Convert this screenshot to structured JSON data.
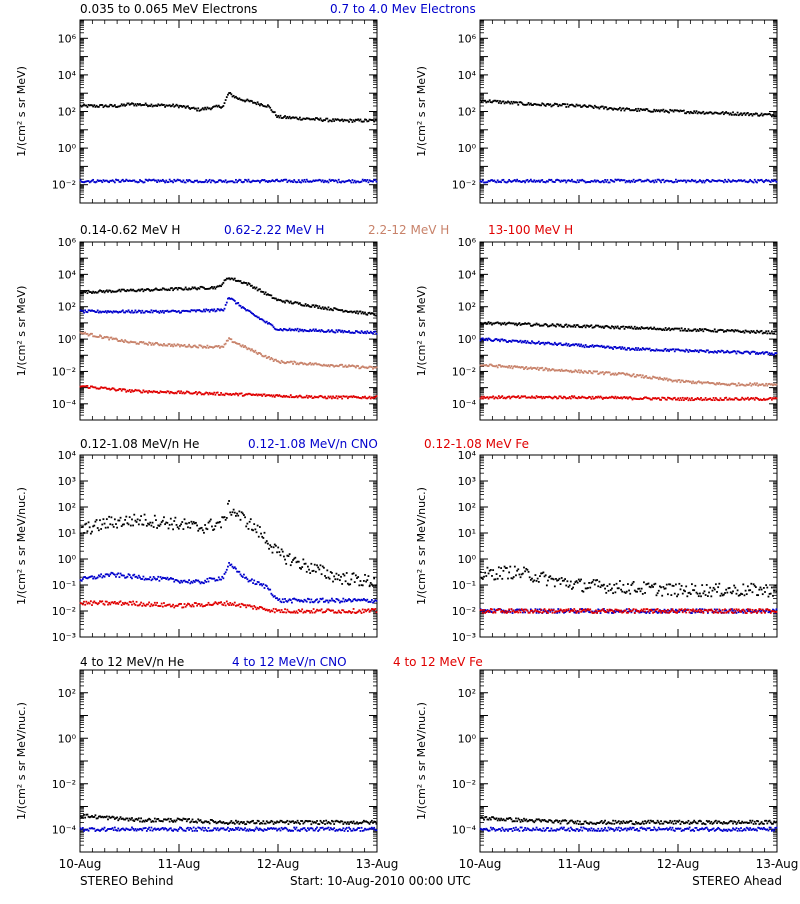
{
  "chart_data": {
    "type": "scatter",
    "x_range_days": [
      0,
      3
    ],
    "x_ticks": [
      "10-Aug",
      "11-Aug",
      "12-Aug",
      "13-Aug"
    ],
    "footer": {
      "left": "STEREO Behind",
      "center": "Start: 10-Aug-2010 00:00 UTC",
      "right": "STEREO Ahead"
    },
    "rows": [
      {
        "headers": [
          {
            "text": "0.035 to 0.065 MeV Electrons",
            "color": "#000000"
          },
          {
            "text": "0.7 to 4.0 Mev Electrons",
            "color": "#0000cc"
          }
        ],
        "ylabel": "1/(cm² s sr MeV)",
        "ylog_range": [
          -3,
          7
        ],
        "y_ticks": [
          -2,
          0,
          2,
          4,
          6
        ],
        "panels": [
          {
            "name": "STEREO Behind",
            "series": [
              {
                "color": "#000000",
                "points": [
                  [
                    0,
                    2.3
                  ],
                  [
                    0.4,
                    2.3
                  ],
                  [
                    0.5,
                    2.4
                  ],
                  [
                    1.0,
                    2.3
                  ],
                  [
                    1.2,
                    2.1
                  ],
                  [
                    1.45,
                    2.3
                  ],
                  [
                    1.5,
                    3.0
                  ],
                  [
                    1.6,
                    2.7
                  ],
                  [
                    1.9,
                    2.3
                  ],
                  [
                    2.0,
                    1.7
                  ],
                  [
                    2.3,
                    1.6
                  ],
                  [
                    2.6,
                    1.5
                  ],
                  [
                    3.0,
                    1.5
                  ]
                ]
              },
              {
                "color": "#0000cc",
                "points": [
                  [
                    0,
                    -1.8
                  ],
                  [
                    1.0,
                    -1.8
                  ],
                  [
                    2.0,
                    -1.8
                  ],
                  [
                    3.0,
                    -1.8
                  ]
                ]
              }
            ]
          },
          {
            "name": "STEREO Ahead",
            "series": [
              {
                "color": "#000000",
                "points": [
                  [
                    0,
                    2.6
                  ],
                  [
                    0.5,
                    2.4
                  ],
                  [
                    1.0,
                    2.3
                  ],
                  [
                    1.5,
                    2.1
                  ],
                  [
                    2.0,
                    2.0
                  ],
                  [
                    2.5,
                    1.9
                  ],
                  [
                    3.0,
                    1.8
                  ]
                ]
              },
              {
                "color": "#0000cc",
                "points": [
                  [
                    0,
                    -1.8
                  ],
                  [
                    1.5,
                    -1.8
                  ],
                  [
                    3.0,
                    -1.8
                  ]
                ]
              }
            ]
          }
        ]
      },
      {
        "headers": [
          {
            "text": "0.14-0.62 MeV H",
            "color": "#000000"
          },
          {
            "text": "0.62-2.22 MeV H",
            "color": "#0000cc"
          },
          {
            "text": "2.2-12 MeV H",
            "color": "#c8826a"
          },
          {
            "text": "13-100 MeV H",
            "color": "#e00000"
          }
        ],
        "ylabel": "1/(cm² s sr MeV)",
        "ylog_range": [
          -5,
          6
        ],
        "y_ticks": [
          -4,
          -2,
          0,
          2,
          4,
          6
        ],
        "panels": [
          {
            "name": "STEREO Behind",
            "series": [
              {
                "color": "#000000",
                "points": [
                  [
                    0,
                    2.9
                  ],
                  [
                    0.5,
                    3.0
                  ],
                  [
                    1.0,
                    3.1
                  ],
                  [
                    1.4,
                    3.2
                  ],
                  [
                    1.5,
                    3.8
                  ],
                  [
                    1.7,
                    3.4
                  ],
                  [
                    1.85,
                    2.9
                  ],
                  [
                    2.0,
                    2.4
                  ],
                  [
                    2.5,
                    1.9
                  ],
                  [
                    3.0,
                    1.5
                  ]
                ]
              },
              {
                "color": "#0000cc",
                "points": [
                  [
                    0,
                    1.7
                  ],
                  [
                    0.5,
                    1.7
                  ],
                  [
                    1.0,
                    1.7
                  ],
                  [
                    1.45,
                    1.8
                  ],
                  [
                    1.5,
                    2.6
                  ],
                  [
                    1.7,
                    1.7
                  ],
                  [
                    2.0,
                    0.6
                  ],
                  [
                    2.5,
                    0.5
                  ],
                  [
                    3.0,
                    0.4
                  ]
                ]
              },
              {
                "color": "#c8826a",
                "points": [
                  [
                    0,
                    0.4
                  ],
                  [
                    0.5,
                    -0.2
                  ],
                  [
                    1.0,
                    -0.4
                  ],
                  [
                    1.45,
                    -0.5
                  ],
                  [
                    1.5,
                    0.0
                  ],
                  [
                    1.7,
                    -0.6
                  ],
                  [
                    2.0,
                    -1.4
                  ],
                  [
                    2.5,
                    -1.6
                  ],
                  [
                    3.0,
                    -1.8
                  ]
                ]
              },
              {
                "color": "#e00000",
                "points": [
                  [
                    0,
                    -2.9
                  ],
                  [
                    0.5,
                    -3.2
                  ],
                  [
                    1.0,
                    -3.3
                  ],
                  [
                    1.5,
                    -3.4
                  ],
                  [
                    2.0,
                    -3.5
                  ],
                  [
                    2.5,
                    -3.6
                  ],
                  [
                    3.0,
                    -3.6
                  ]
                ]
              }
            ]
          },
          {
            "name": "STEREO Ahead",
            "series": [
              {
                "color": "#000000",
                "points": [
                  [
                    0,
                    1.0
                  ],
                  [
                    0.5,
                    0.9
                  ],
                  [
                    1.0,
                    0.8
                  ],
                  [
                    1.5,
                    0.7
                  ],
                  [
                    2.0,
                    0.6
                  ],
                  [
                    2.5,
                    0.5
                  ],
                  [
                    3.0,
                    0.4
                  ]
                ]
              },
              {
                "color": "#0000cc",
                "points": [
                  [
                    0,
                    0.0
                  ],
                  [
                    0.5,
                    -0.2
                  ],
                  [
                    1.0,
                    -0.4
                  ],
                  [
                    1.5,
                    -0.6
                  ],
                  [
                    2.0,
                    -0.7
                  ],
                  [
                    2.5,
                    -0.8
                  ],
                  [
                    3.0,
                    -0.9
                  ]
                ]
              },
              {
                "color": "#c8826a",
                "points": [
                  [
                    0,
                    -1.6
                  ],
                  [
                    0.5,
                    -1.8
                  ],
                  [
                    1.0,
                    -2.0
                  ],
                  [
                    1.5,
                    -2.2
                  ],
                  [
                    2.0,
                    -2.6
                  ],
                  [
                    2.5,
                    -2.8
                  ],
                  [
                    3.0,
                    -2.8
                  ]
                ]
              },
              {
                "color": "#e00000",
                "points": [
                  [
                    0,
                    -3.6
                  ],
                  [
                    1.0,
                    -3.6
                  ],
                  [
                    2.0,
                    -3.7
                  ],
                  [
                    3.0,
                    -3.7
                  ]
                ]
              }
            ]
          }
        ]
      },
      {
        "headers": [
          {
            "text": "0.12-1.08 MeV/n He",
            "color": "#000000"
          },
          {
            "text": "0.12-1.08 MeV/n CNO",
            "color": "#0000cc"
          },
          {
            "text": "0.12-1.08 MeV Fe",
            "color": "#e00000"
          }
        ],
        "ylabel": "1/(cm² s sr MeV/nuc.)",
        "ylog_range": [
          -3,
          4
        ],
        "y_ticks": [
          -3,
          -2,
          -1,
          0,
          1,
          2,
          3,
          4
        ],
        "y_tick_labels": [
          "10⁻³",
          "10⁻²",
          "10⁻¹",
          "10⁰",
          "10¹",
          "10²",
          "10³",
          "10⁴"
        ],
        "panels": [
          {
            "name": "STEREO Behind",
            "series": [
              {
                "color": "#000000",
                "points": [
                  [
                    0,
                    1.1
                  ],
                  [
                    0.3,
                    1.4
                  ],
                  [
                    0.6,
                    1.5
                  ],
                  [
                    0.9,
                    1.4
                  ],
                  [
                    1.2,
                    1.2
                  ],
                  [
                    1.45,
                    1.4
                  ],
                  [
                    1.5,
                    2.0
                  ],
                  [
                    1.7,
                    1.4
                  ],
                  [
                    1.85,
                    0.9
                  ],
                  [
                    2.0,
                    0.2
                  ],
                  [
                    2.3,
                    -0.3
                  ],
                  [
                    2.6,
                    -0.7
                  ],
                  [
                    3.0,
                    -0.9
                  ]
                ]
              },
              {
                "color": "#0000cc",
                "points": [
                  [
                    0,
                    -0.8
                  ],
                  [
                    0.3,
                    -0.6
                  ],
                  [
                    0.6,
                    -0.7
                  ],
                  [
                    0.9,
                    -0.8
                  ],
                  [
                    1.2,
                    -0.9
                  ],
                  [
                    1.45,
                    -0.7
                  ],
                  [
                    1.5,
                    -0.2
                  ],
                  [
                    1.7,
                    -0.8
                  ],
                  [
                    1.9,
                    -1.1
                  ],
                  [
                    2.0,
                    -1.6
                  ],
                  [
                    3.0,
                    -1.6
                  ]
                ]
              },
              {
                "color": "#e00000",
                "points": [
                  [
                    0,
                    -1.7
                  ],
                  [
                    0.5,
                    -1.7
                  ],
                  [
                    1.0,
                    -1.8
                  ],
                  [
                    1.5,
                    -1.7
                  ],
                  [
                    2.0,
                    -2.0
                  ],
                  [
                    3.0,
                    -2.0
                  ]
                ]
              }
            ]
          },
          {
            "name": "STEREO Ahead",
            "series": [
              {
                "color": "#000000",
                "points": [
                  [
                    0,
                    -0.6
                  ],
                  [
                    0.3,
                    -0.5
                  ],
                  [
                    0.5,
                    -0.6
                  ],
                  [
                    0.7,
                    -0.8
                  ],
                  [
                    1.0,
                    -1.0
                  ],
                  [
                    1.5,
                    -1.1
                  ],
                  [
                    2.0,
                    -1.2
                  ],
                  [
                    3.0,
                    -1.2
                  ]
                ]
              },
              {
                "color": "#0000cc",
                "points": [
                  [
                    0,
                    -2.0
                  ],
                  [
                    3.0,
                    -2.0
                  ]
                ]
              },
              {
                "color": "#e00000",
                "points": [
                  [
                    0,
                    -2.0
                  ],
                  [
                    3.0,
                    -2.0
                  ]
                ]
              }
            ]
          }
        ]
      },
      {
        "headers": [
          {
            "text": "4 to 12 MeV/n He",
            "color": "#000000"
          },
          {
            "text": "4 to 12 MeV/n CNO",
            "color": "#0000cc"
          },
          {
            "text": "4 to 12 MeV Fe",
            "color": "#e00000"
          }
        ],
        "ylabel": "1/(cm² s sr MeV/nuc.)",
        "ylog_range": [
          -5,
          3
        ],
        "y_ticks": [
          -4,
          -2,
          0,
          2
        ],
        "panels": [
          {
            "name": "STEREO Behind",
            "series": [
              {
                "color": "#000000",
                "points": [
                  [
                    0,
                    -3.4
                  ],
                  [
                    0.3,
                    -3.5
                  ],
                  [
                    0.6,
                    -3.6
                  ],
                  [
                    1.0,
                    -3.6
                  ],
                  [
                    1.5,
                    -3.7
                  ],
                  [
                    2.0,
                    -3.7
                  ],
                  [
                    3.0,
                    -3.7
                  ]
                ]
              },
              {
                "color": "#0000cc",
                "points": [
                  [
                    0,
                    -4.0
                  ],
                  [
                    3.0,
                    -4.0
                  ]
                ]
              }
            ]
          },
          {
            "name": "STEREO Ahead",
            "series": [
              {
                "color": "#000000",
                "points": [
                  [
                    0,
                    -3.5
                  ],
                  [
                    0.4,
                    -3.6
                  ],
                  [
                    1.0,
                    -3.7
                  ],
                  [
                    2.0,
                    -3.7
                  ],
                  [
                    3.0,
                    -3.7
                  ]
                ]
              },
              {
                "color": "#0000cc",
                "points": [
                  [
                    0,
                    -4.0
                  ],
                  [
                    3.0,
                    -4.0
                  ]
                ]
              }
            ]
          }
        ]
      }
    ]
  }
}
